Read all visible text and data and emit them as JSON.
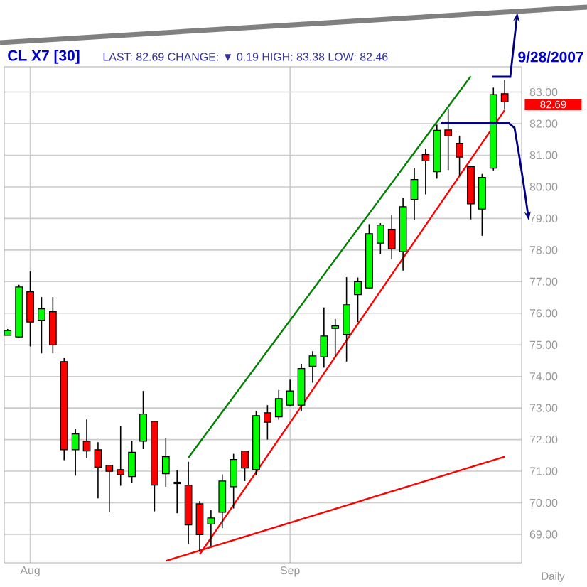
{
  "chart_data": {
    "type": "candlestick",
    "title": "CL X7 [30]",
    "subtitle": "LAST: 82.69  CHANGE: ▼ 0.19  HIGH: 83.38  LOW: 82.46",
    "annotations": [
      "9/28/2007",
      "Daily",
      "82.69"
    ],
    "categories": [
      null,
      null,
      "Aug",
      null,
      null,
      null,
      null,
      null,
      null,
      null,
      null,
      null,
      null,
      null,
      null,
      null,
      null,
      null,
      null,
      null,
      null,
      null,
      null,
      null,
      null,
      "Sep",
      null,
      null,
      null,
      null,
      null,
      null,
      null,
      null,
      null,
      null,
      null,
      null,
      null,
      null,
      null,
      null,
      null,
      null,
      null
    ],
    "ohlc": [
      [
        75.3,
        75.5,
        75.3,
        75.45
      ],
      [
        75.25,
        76.9,
        75.22,
        76.83
      ],
      [
        76.68,
        77.32,
        74.95,
        75.72
      ],
      [
        75.78,
        76.51,
        74.73,
        76.14
      ],
      [
        76.05,
        76.51,
        74.73,
        75.0
      ],
      [
        74.47,
        74.58,
        71.35,
        71.68
      ],
      [
        71.68,
        72.33,
        70.86,
        72.18
      ],
      [
        71.95,
        72.64,
        71.43,
        71.64
      ],
      [
        71.68,
        71.92,
        70.14,
        71.13
      ],
      [
        71.19,
        71.19,
        69.7,
        71.0
      ],
      [
        71.05,
        72.42,
        70.54,
        70.9
      ],
      [
        70.83,
        71.97,
        70.62,
        71.6
      ],
      [
        71.95,
        73.54,
        71.7,
        72.81
      ],
      [
        72.58,
        72.58,
        69.73,
        70.56
      ],
      [
        70.92,
        72.06,
        70.51,
        71.46
      ],
      [
        70.63,
        71.03,
        69.67,
        70.63
      ],
      [
        70.56,
        71.3,
        68.7,
        69.3
      ],
      [
        69.97,
        70.05,
        68.45,
        68.99
      ],
      [
        69.33,
        69.77,
        68.63,
        69.52
      ],
      [
        69.7,
        70.9,
        69.2,
        70.69
      ],
      [
        70.51,
        71.55,
        69.82,
        71.37
      ],
      [
        71.64,
        71.64,
        70.69,
        71.1
      ],
      [
        71.05,
        72.91,
        70.87,
        72.76
      ],
      [
        72.85,
        73.09,
        72.0,
        72.55
      ],
      [
        72.72,
        73.57,
        72.63,
        73.3
      ],
      [
        73.09,
        73.9,
        73.06,
        73.54
      ],
      [
        73.09,
        74.4,
        72.9,
        74.25
      ],
      [
        74.32,
        74.8,
        73.8,
        74.65
      ],
      [
        74.62,
        76.18,
        74.28,
        75.28
      ],
      [
        75.52,
        75.82,
        74.62,
        75.6
      ],
      [
        75.33,
        77.14,
        74.47,
        76.27
      ],
      [
        76.59,
        77.13,
        75.72,
        77.0
      ],
      [
        76.8,
        78.82,
        76.76,
        78.52
      ],
      [
        78.22,
        78.85,
        77.88,
        78.79
      ],
      [
        78.66,
        79.12,
        77.7,
        78.04
      ],
      [
        77.95,
        79.66,
        77.35,
        79.37
      ],
      [
        79.6,
        80.6,
        78.94,
        80.23
      ],
      [
        81.02,
        81.21,
        79.76,
        80.82
      ],
      [
        80.48,
        81.97,
        80.26,
        81.79
      ],
      [
        81.8,
        82.45,
        80.53,
        81.61
      ],
      [
        81.38,
        81.62,
        80.36,
        80.94
      ],
      [
        80.64,
        80.67,
        78.97,
        79.46
      ],
      [
        79.3,
        80.41,
        78.45,
        80.3
      ],
      [
        80.59,
        83.14,
        80.52,
        82.92
      ],
      [
        82.95,
        83.38,
        82.46,
        82.69
      ]
    ],
    "colors": [
      "#00ff00",
      "#00ff00",
      "#ff0000",
      "#00ff00",
      "#ff0000",
      "#ff0000",
      "#00ff00",
      "#ff0000",
      "#ff0000",
      "#ff0000",
      "#ff0000",
      "#00ff00",
      "#00ff00",
      "#ff0000",
      "#00ff00",
      "#000000",
      "#ff0000",
      "#ff0000",
      "#00ff00",
      "#00ff00",
      "#00ff00",
      "#ff0000",
      "#00ff00",
      "#ff0000",
      "#00ff00",
      "#00ff00",
      "#00ff00",
      "#00ff00",
      "#00ff00",
      "#00ff00",
      "#00ff00",
      "#00ff00",
      "#00ff00",
      "#00ff00",
      "#ff0000",
      "#00ff00",
      "#00ff00",
      "#ff0000",
      "#00ff00",
      "#ff0000",
      "#ff0000",
      "#ff0000",
      "#00ff00",
      "#00ff00",
      "#ff0000"
    ],
    "series": [
      {
        "type": "line",
        "color": "#008000",
        "values": [
          null,
          null,
          null,
          null,
          null,
          null,
          null,
          null,
          null,
          null,
          null,
          null,
          null,
          null,
          null,
          null,
          71.43,
          null,
          null,
          null,
          null,
          null,
          null,
          null,
          null,
          null,
          null,
          null,
          null,
          null,
          null,
          null,
          null,
          null,
          null,
          null,
          null,
          null,
          null,
          null,
          null,
          83.5,
          null,
          null,
          null
        ]
      },
      {
        "type": "line",
        "color": "#ff0000",
        "values": [
          null,
          null,
          null,
          null,
          null,
          null,
          null,
          null,
          null,
          null,
          null,
          null,
          null,
          null,
          null,
          null,
          null,
          68.37,
          null,
          null,
          null,
          null,
          null,
          null,
          null,
          null,
          null,
          null,
          null,
          null,
          null,
          null,
          null,
          null,
          null,
          null,
          null,
          null,
          null,
          null,
          null,
          null,
          null,
          null,
          82.43
        ]
      },
      {
        "type": "line",
        "color": "#ff0000",
        "values": [
          null,
          null,
          null,
          null,
          null,
          null,
          null,
          null,
          null,
          null,
          null,
          null,
          null,
          null,
          68.16,
          null,
          null,
          null,
          null,
          null,
          null,
          null,
          null,
          null,
          null,
          null,
          null,
          null,
          null,
          null,
          null,
          null,
          null,
          null,
          null,
          null,
          null,
          null,
          null,
          null,
          null,
          null,
          null,
          null,
          71.46
        ]
      }
    ],
    "ylim": [
      68.1,
      83.8
    ],
    "yticks": [
      {
        "value": 69,
        "label": "69.00"
      },
      {
        "value": 70,
        "label": "70.00"
      },
      {
        "value": 71,
        "label": "71.00"
      },
      {
        "value": 72,
        "label": "72.00"
      },
      {
        "value": 73,
        "label": "73.00"
      },
      {
        "value": 74,
        "label": "74.00"
      },
      {
        "value": 75,
        "label": "75.00"
      },
      {
        "value": 76,
        "label": "76.00"
      },
      {
        "value": 77,
        "label": "77.00"
      },
      {
        "value": 78,
        "label": "78.00"
      },
      {
        "value": 79,
        "label": "79.00"
      },
      {
        "value": 80,
        "label": "80.00"
      },
      {
        "value": 81,
        "label": "81.00"
      },
      {
        "value": 82,
        "label": "82.00"
      },
      {
        "value": 83,
        "label": "83.00"
      }
    ],
    "grid": true
  }
}
